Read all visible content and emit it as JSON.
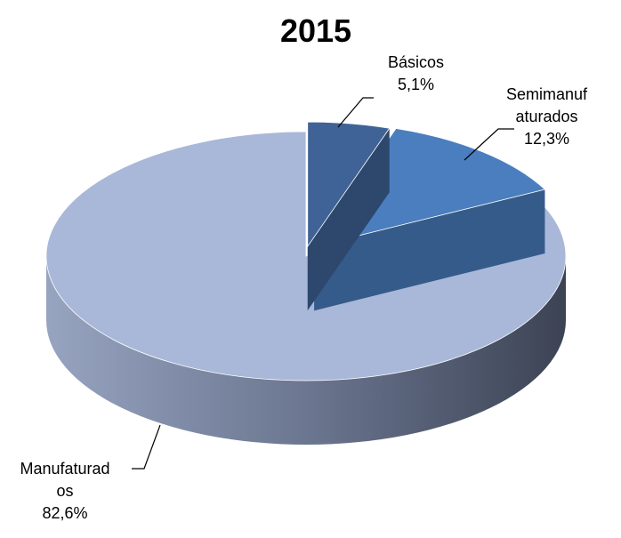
{
  "chart_data": {
    "type": "pie",
    "title": "2015",
    "categories": [
      "Básicos",
      "Semimanufaturados",
      "Manufaturados"
    ],
    "values": [
      5.1,
      12.3,
      82.6
    ],
    "value_labels": [
      "5,1%",
      "12,3%",
      "82,6%"
    ],
    "colors": [
      "#3f6397",
      "#4a7ebf",
      "#a9b8d8"
    ]
  }
}
